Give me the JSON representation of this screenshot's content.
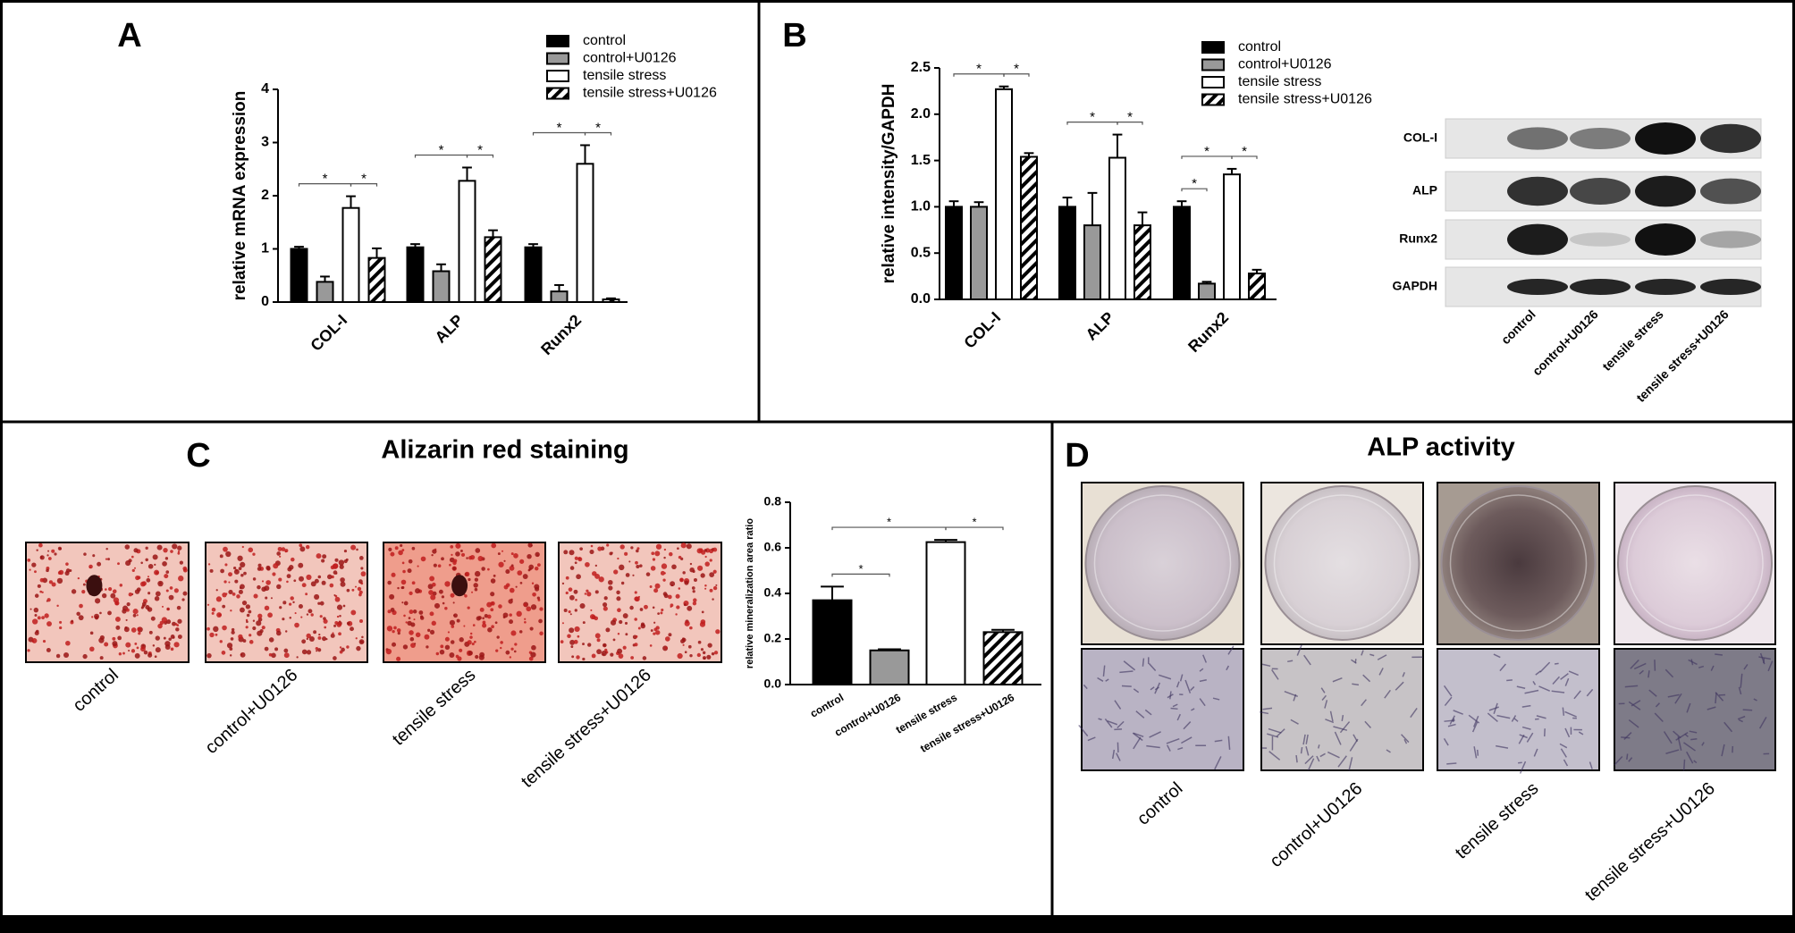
{
  "panel_labels": [
    "A",
    "B",
    "C",
    "D"
  ],
  "chart_data": [
    {
      "type": "grouped_bar",
      "ylabel": "relative mRNA expression",
      "categories": [
        "COL-I",
        "ALP",
        "Runx2"
      ],
      "series": [
        {
          "name": "control",
          "color": "#000000",
          "values": [
            1.0,
            1.03,
            1.03
          ],
          "errors": [
            0.04,
            0.06,
            0.06
          ]
        },
        {
          "name": "control+U0126",
          "color": "#999999",
          "values": [
            0.38,
            0.58,
            0.2
          ],
          "errors": [
            0.1,
            0.13,
            0.12
          ]
        },
        {
          "name": "tensile stress",
          "color": "#ffffff",
          "values": [
            1.77,
            2.28,
            2.6
          ],
          "errors": [
            0.22,
            0.25,
            0.35
          ]
        },
        {
          "name": "tensile stress+U0126",
          "color": "hatch",
          "values": [
            0.83,
            1.22,
            0.05
          ],
          "errors": [
            0.18,
            0.13,
            0.02
          ]
        }
      ],
      "ylim": [
        0,
        4
      ],
      "yticks": [
        0,
        1,
        2,
        3,
        4
      ],
      "significance": [
        {
          "category": 0,
          "from": 0,
          "to": 2,
          "label": "*"
        },
        {
          "category": 0,
          "from": 2,
          "to": 3,
          "label": "*"
        },
        {
          "category": 1,
          "from": 0,
          "to": 2,
          "label": "*"
        },
        {
          "category": 1,
          "from": 2,
          "to": 3,
          "label": "*"
        },
        {
          "category": 2,
          "from": 0,
          "to": 2,
          "label": "*"
        },
        {
          "category": 2,
          "from": 2,
          "to": 3,
          "label": "*"
        }
      ]
    },
    {
      "type": "grouped_bar",
      "ylabel": "relative intensity/GAPDH",
      "categories": [
        "COL-I",
        "ALP",
        "Runx2"
      ],
      "series": [
        {
          "name": "control",
          "color": "#000000",
          "values": [
            1.0,
            1.0,
            1.0
          ],
          "errors": [
            0.06,
            0.1,
            0.06
          ]
        },
        {
          "name": "control+U0126",
          "color": "#999999",
          "values": [
            1.0,
            0.8,
            0.17
          ],
          "errors": [
            0.05,
            0.35,
            0.02
          ]
        },
        {
          "name": "tensile stress",
          "color": "#ffffff",
          "values": [
            2.27,
            1.53,
            1.35
          ],
          "errors": [
            0.03,
            0.25,
            0.06
          ]
        },
        {
          "name": "tensile stress+U0126",
          "color": "hatch",
          "values": [
            1.54,
            0.8,
            0.28
          ],
          "errors": [
            0.04,
            0.14,
            0.04
          ]
        }
      ],
      "ylim": [
        0,
        2.5
      ],
      "yticks": [
        {
          "value": 0,
          "label": "0.0"
        },
        0.5,
        {
          "value": 1,
          "label": "1.0"
        },
        1.5,
        {
          "value": 2,
          "label": "2.0"
        },
        2.5
      ],
      "significance": [
        {
          "category": 0,
          "from": 0,
          "to": 2,
          "label": "*"
        },
        {
          "category": 0,
          "from": 2,
          "to": 3,
          "label": "*"
        },
        {
          "category": 1,
          "from": 0,
          "to": 2,
          "label": "*"
        },
        {
          "category": 1,
          "from": 2,
          "to": 3,
          "label": "*"
        },
        {
          "category": 2,
          "from": 0,
          "to": 1,
          "label": "*"
        },
        {
          "category": 2,
          "from": 0,
          "to": 2,
          "label": "*"
        },
        {
          "category": 2,
          "from": 2,
          "to": 3,
          "label": "*"
        }
      ]
    },
    {
      "type": "bar",
      "ylabel": "relative mineralization area ratio",
      "categories": [
        "control",
        "control+U0126",
        "tensile stress",
        "tensile stress+U0126"
      ],
      "values": [
        0.37,
        0.15,
        0.625,
        0.23
      ],
      "errors": [
        0.06,
        0.005,
        0.01,
        0.01
      ],
      "colors": [
        "#000000",
        "#999999",
        "#ffffff",
        "hatch"
      ],
      "ylim": [
        0,
        0.8
      ],
      "yticks": [
        {
          "value": 0,
          "label": "0.0"
        },
        0.2,
        0.4,
        0.6,
        0.8
      ],
      "significance": [
        {
          "from": 0,
          "to": 1,
          "label": "*"
        },
        {
          "from": 0,
          "to": 2,
          "label": "*"
        },
        {
          "from": 2,
          "to": 3,
          "label": "*"
        }
      ]
    }
  ],
  "western_blot": {
    "bands": [
      "COL-I",
      "ALP",
      "Runx2",
      "GAPDH"
    ],
    "lanes": [
      "control",
      "control+U0126",
      "tensile stress",
      "tensile stress+U0126"
    ]
  },
  "alizarin_red": {
    "title": "Alizarin red staining",
    "images": [
      "control",
      "control+U0126",
      "tensile stress",
      "tensile stress+U0126"
    ]
  },
  "alp_activity": {
    "title": "ALP activity",
    "images": [
      "control",
      "control+U0126",
      "tensile stress",
      "tensile stress+U0126"
    ]
  }
}
